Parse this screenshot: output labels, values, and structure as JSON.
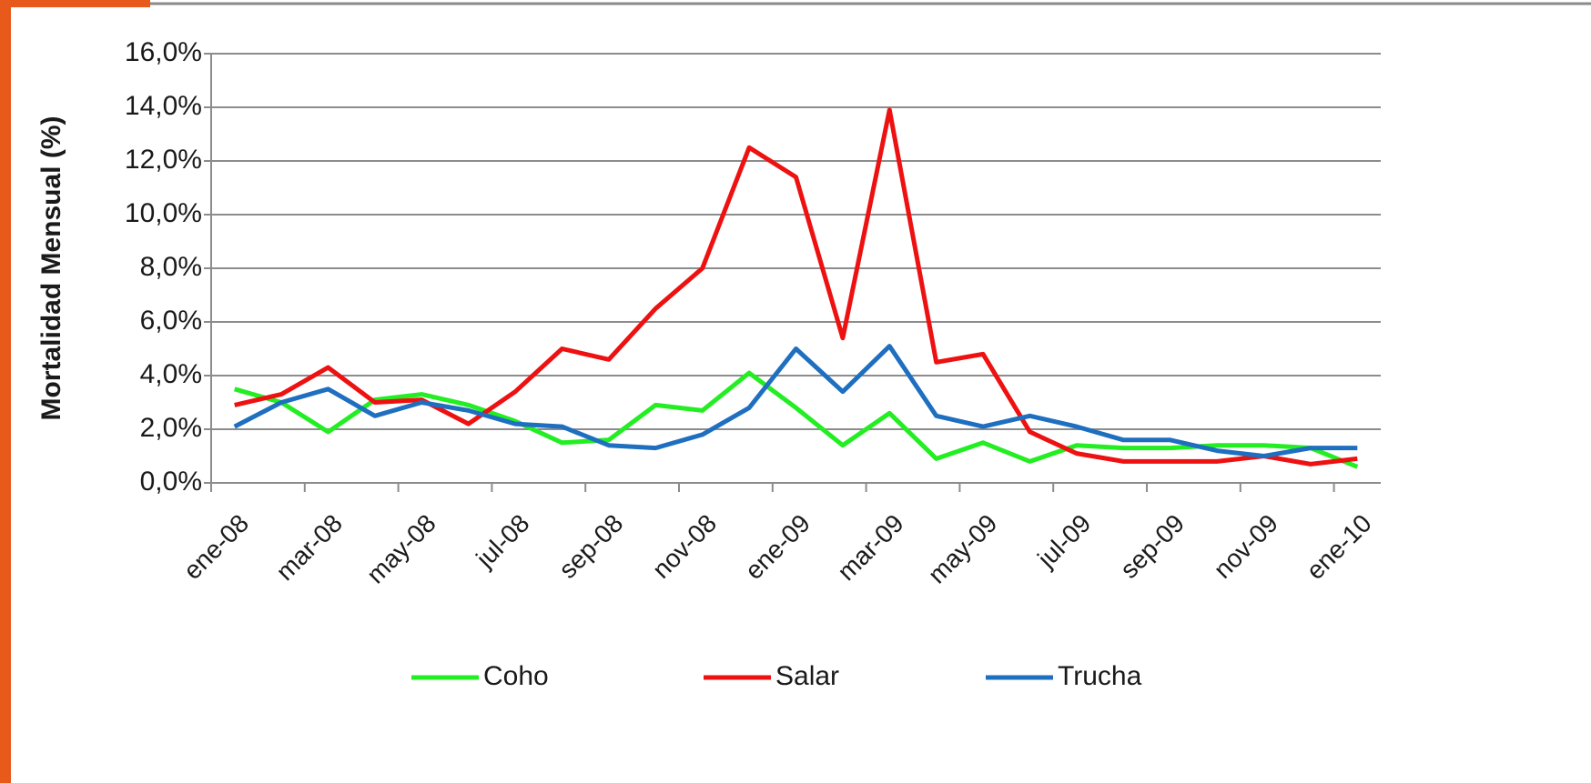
{
  "chart_data": {
    "type": "line",
    "y_label": "Mortalidad Mensual (%)",
    "categories": [
      "ene-08",
      null,
      "mar-08",
      null,
      "may-08",
      null,
      "jul-08",
      null,
      "sep-08",
      null,
      "nov-08",
      null,
      "ene-09",
      null,
      "mar-09",
      null,
      "may-09",
      null,
      "jul-09",
      null,
      "sep-09",
      null,
      "nov-09",
      null,
      "ene-10"
    ],
    "series": [
      {
        "name": "Coho",
        "color": "#22ee22",
        "values": [
          3.5,
          3.0,
          1.9,
          3.1,
          3.3,
          2.9,
          2.3,
          1.5,
          1.6,
          2.9,
          2.7,
          4.1,
          2.8,
          1.4,
          2.6,
          0.9,
          1.5,
          0.8,
          1.4,
          1.3,
          1.3,
          1.4,
          1.4,
          1.3,
          0.6
        ]
      },
      {
        "name": "Salar",
        "color": "#ee1111",
        "values": [
          2.9,
          3.3,
          4.3,
          3.0,
          3.1,
          2.2,
          3.4,
          5.0,
          4.6,
          6.5,
          8.0,
          12.5,
          11.4,
          5.4,
          13.9,
          4.5,
          4.8,
          1.9,
          1.1,
          0.8,
          0.8,
          0.8,
          1.0,
          0.7,
          0.9
        ]
      },
      {
        "name": "Trucha",
        "color": "#1f6fc0",
        "values": [
          2.1,
          3.0,
          3.5,
          2.5,
          3.0,
          2.7,
          2.2,
          2.1,
          1.4,
          1.3,
          1.8,
          2.8,
          5.0,
          3.4,
          5.1,
          2.5,
          2.1,
          2.5,
          2.1,
          1.6,
          1.6,
          1.2,
          1.0,
          1.3,
          1.3
        ]
      }
    ],
    "ylim": [
      0,
      16
    ],
    "yticks": [
      {
        "value": 0,
        "label": "0,0%"
      },
      {
        "value": 2,
        "label": "2,0%"
      },
      {
        "value": 4,
        "label": "4,0%"
      },
      {
        "value": 6,
        "label": "6,0%"
      },
      {
        "value": 8,
        "label": "8,0%"
      },
      {
        "value": 10,
        "label": "10,0%"
      },
      {
        "value": 12,
        "label": "12,0%"
      },
      {
        "value": 14,
        "label": "14,0%"
      },
      {
        "value": 16,
        "label": "16,0%"
      }
    ],
    "grid": true,
    "legend": "bottom"
  }
}
